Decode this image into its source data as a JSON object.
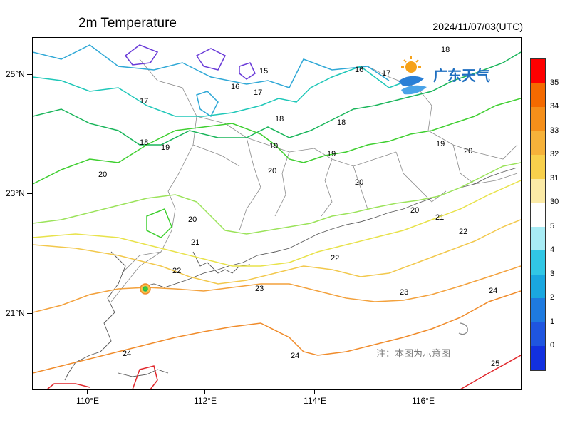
{
  "title": "2m Temperature",
  "timestamp": "2024/11/07/03(UTC)",
  "y_axis": [
    "25°N",
    "23°N",
    "21°N"
  ],
  "x_axis": [
    "110°E",
    "112°E",
    "114°E",
    "116°E"
  ],
  "colorbar": {
    "labels": [
      "35",
      "34",
      "33",
      "32",
      "31",
      "30",
      "5",
      "4",
      "3",
      "2",
      "1",
      "0"
    ],
    "colors": [
      "#ff0000",
      "#f46a00",
      "#f58f1a",
      "#f6b23a",
      "#f8d04c",
      "#fbeaa6",
      "#ffffff",
      "#a8ecf5",
      "#31c7e5",
      "#1aa7e0",
      "#1e7ae0",
      "#1f55e0",
      "#1230e0"
    ]
  },
  "logo_text": "广东天气",
  "disclaimer": "注：本图为示意图",
  "contour_labels": [
    "15",
    "16",
    "16",
    "17",
    "17",
    "17",
    "18",
    "18",
    "18",
    "18",
    "19",
    "19",
    "19",
    "19",
    "20",
    "20",
    "20",
    "20",
    "20",
    "20",
    "21",
    "21",
    "22",
    "22",
    "22",
    "23",
    "23",
    "24",
    "24",
    "24",
    "25"
  ],
  "isotherm_colors": {
    "15": "#5a3ed8",
    "16": "#2fa8d6",
    "17": "#1ec7b8",
    "18": "#19b55a",
    "19": "#3fcf30",
    "20": "#9be35a",
    "21": "#e8e24a",
    "22": "#f2c84c",
    "23": "#f3a13c",
    "24": "#f08b2a",
    "25": "#e0262b"
  }
}
